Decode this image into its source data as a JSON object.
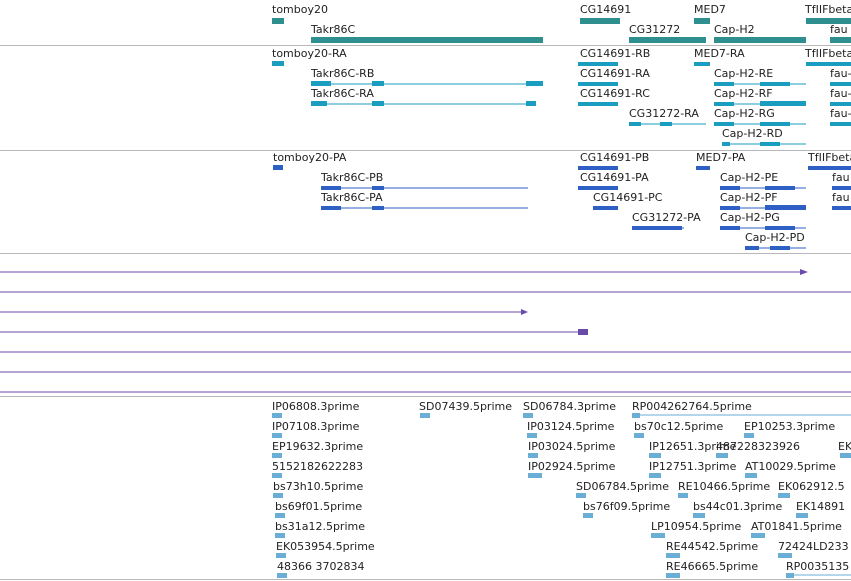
{
  "colors": {
    "gene": "#2f8f8f",
    "transcript_cyan": "#1a9dbf",
    "transcript_blue": "#2d5fc4",
    "align_purple": "#6a4aa8",
    "est_blue": "#6aaed6",
    "divider": "#b8b8b8"
  },
  "gene_track": {
    "labels": [
      {
        "text": "tomboy20"
      },
      {
        "text": "Takr86C"
      },
      {
        "text": "CG14691"
      },
      {
        "text": "CG31272"
      },
      {
        "text": "MED7"
      },
      {
        "text": "Cap-H2"
      },
      {
        "text": "TfIIFbeta"
      },
      {
        "text": "fau"
      }
    ]
  },
  "transcript_track_1": {
    "labels": [
      {
        "text": "tomboy20-RA"
      },
      {
        "text": "Takr86C-RB"
      },
      {
        "text": "Takr86C-RA"
      },
      {
        "text": "CG14691-RB"
      },
      {
        "text": "CG14691-RA"
      },
      {
        "text": "CG14691-RC"
      },
      {
        "text": "CG31272-RA"
      },
      {
        "text": "MED7-RA"
      },
      {
        "text": "Cap-H2-RE"
      },
      {
        "text": "Cap-H2-RF"
      },
      {
        "text": "Cap-H2-RG"
      },
      {
        "text": "Cap-H2-RD"
      },
      {
        "text": "TfIIFbeta"
      },
      {
        "text": "fau-"
      },
      {
        "text": "fau-"
      },
      {
        "text": "fau-"
      }
    ]
  },
  "transcript_track_2": {
    "labels": [
      {
        "text": "tomboy20-PA"
      },
      {
        "text": "Takr86C-PB"
      },
      {
        "text": "Takr86C-PA"
      },
      {
        "text": "CG14691-PB"
      },
      {
        "text": "CG14691-PA"
      },
      {
        "text": "CG14691-PC"
      },
      {
        "text": "CG31272-PA"
      },
      {
        "text": "MED7-PA"
      },
      {
        "text": "Cap-H2-PE"
      },
      {
        "text": "Cap-H2-PF"
      },
      {
        "text": "Cap-H2-PG"
      },
      {
        "text": "Cap-H2-PD"
      },
      {
        "text": "TfIIFbeta"
      },
      {
        "text": "fau"
      },
      {
        "text": "fau"
      }
    ]
  },
  "est_track": {
    "labels": [
      {
        "text": "IP06808.3prime"
      },
      {
        "text": "IP07108.3prime"
      },
      {
        "text": "EP19632.3prime"
      },
      {
        "text": "5152182622283"
      },
      {
        "text": "bs73h10.5prime"
      },
      {
        "text": "bs69f01.5prime"
      },
      {
        "text": "bs31a12.5prime"
      },
      {
        "text": "EK053954.5prime"
      },
      {
        "text": "48366 3702834"
      },
      {
        "text": "SD07439.5prime"
      },
      {
        "text": "SD06784.3prime"
      },
      {
        "text": "IP03124.5prime"
      },
      {
        "text": "IP03024.5prime"
      },
      {
        "text": "IP02924.5prime"
      },
      {
        "text": "SD06784.5prime"
      },
      {
        "text": "bs76f09.5prime"
      },
      {
        "text": "RP004262764.5prime"
      },
      {
        "text": "bs70c12.5prime"
      },
      {
        "text": "IP12651.3prime"
      },
      {
        "text": "IP12751.3prime"
      },
      {
        "text": "RE10466.5prime"
      },
      {
        "text": "bs44c01.3prime"
      },
      {
        "text": "LP10954.5prime"
      },
      {
        "text": "RE44542.5prime"
      },
      {
        "text": "RE46665.5prime"
      },
      {
        "text": "EP10253.3prime"
      },
      {
        "text": "487228323926"
      },
      {
        "text": "EK"
      },
      {
        "text": "AT10029.5prime"
      },
      {
        "text": "EK062912.5"
      },
      {
        "text": "EK14891"
      },
      {
        "text": "AT01841.5prime"
      },
      {
        "text": "72424LD233"
      },
      {
        "text": "RP0035135"
      }
    ]
  }
}
